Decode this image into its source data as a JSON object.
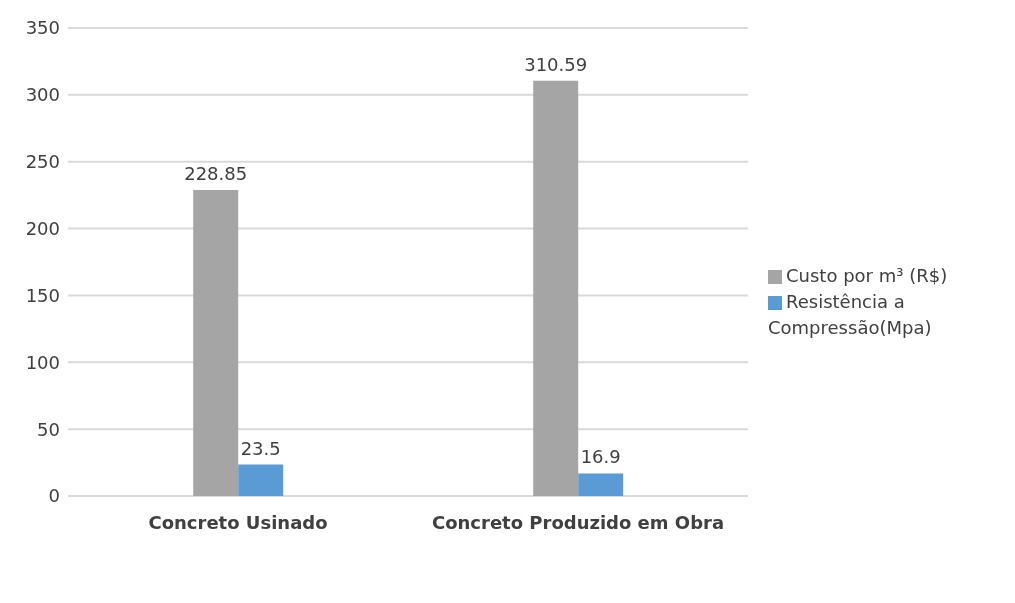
{
  "chart_data": {
    "type": "bar",
    "categories": [
      "Concreto Usinado",
      "Concreto Produzido em Obra"
    ],
    "series": [
      {
        "name": "Custo por m³ (R$)",
        "color": "#a5a5a5",
        "values": [
          228.85,
          310.59
        ]
      },
      {
        "name": "Resistência a Compressão(Mpa)",
        "color": "#5b9bd5",
        "values": [
          23.5,
          16.9
        ]
      }
    ],
    "ylim": [
      0,
      350
    ],
    "yticks": [
      0,
      50,
      100,
      150,
      200,
      250,
      300,
      350
    ],
    "grid": "y",
    "legend": "right",
    "data_labels": true
  }
}
